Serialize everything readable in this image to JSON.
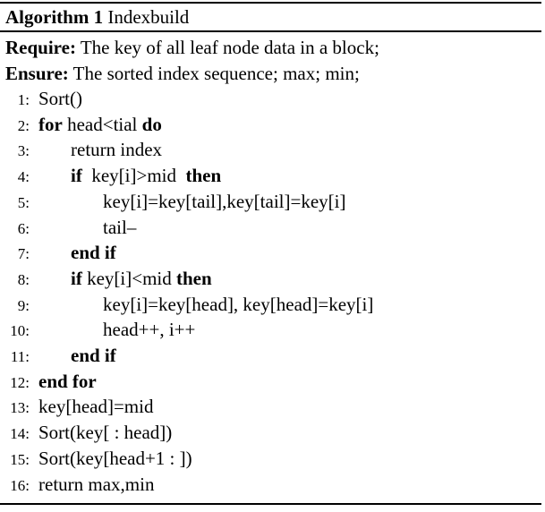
{
  "algorithm": {
    "label": "Algorithm 1",
    "name": "Indexbuild"
  },
  "require": {
    "keyword": "Require:",
    "text": "The key of all leaf node data in a block;"
  },
  "ensure": {
    "keyword": "Ensure:",
    "text": "The sorted index sequence; max; min;"
  },
  "lines": [
    {
      "num": "1:",
      "indent": 0,
      "parts": [
        {
          "t": "Sort()"
        }
      ]
    },
    {
      "num": "2:",
      "indent": 0,
      "parts": [
        {
          "t": "for",
          "kw": true
        },
        {
          "t": " head<tial "
        },
        {
          "t": "do",
          "kw": true
        }
      ]
    },
    {
      "num": "3:",
      "indent": 1,
      "parts": [
        {
          "t": "return index"
        }
      ]
    },
    {
      "num": "4:",
      "indent": 1,
      "parts": [
        {
          "t": "if",
          "kw": true
        },
        {
          "t": "  key[i]>mid  "
        },
        {
          "t": "then",
          "kw": true
        }
      ]
    },
    {
      "num": "5:",
      "indent": 2,
      "parts": [
        {
          "t": "key[i]=key[tail],key[tail]=key[i]"
        }
      ]
    },
    {
      "num": "6:",
      "indent": 2,
      "parts": [
        {
          "t": "tail–"
        }
      ]
    },
    {
      "num": "7:",
      "indent": 1,
      "parts": [
        {
          "t": "end if",
          "kw": true
        }
      ]
    },
    {
      "num": "8:",
      "indent": 1,
      "parts": [
        {
          "t": "if",
          "kw": true
        },
        {
          "t": " key[i]<mid "
        },
        {
          "t": "then",
          "kw": true
        }
      ]
    },
    {
      "num": "9:",
      "indent": 2,
      "parts": [
        {
          "t": "key[i]=key[head], key[head]=key[i]"
        }
      ]
    },
    {
      "num": "10:",
      "indent": 2,
      "parts": [
        {
          "t": "head++, i++"
        }
      ]
    },
    {
      "num": "11:",
      "indent": 1,
      "parts": [
        {
          "t": "end if",
          "kw": true
        }
      ]
    },
    {
      "num": "12:",
      "indent": 0,
      "parts": [
        {
          "t": "end for",
          "kw": true
        }
      ]
    },
    {
      "num": "13:",
      "indent": 0,
      "parts": [
        {
          "t": "key[head]=mid"
        }
      ]
    },
    {
      "num": "14:",
      "indent": 0,
      "parts": [
        {
          "t": "Sort(key[ : head])"
        }
      ]
    },
    {
      "num": "15:",
      "indent": 0,
      "parts": [
        {
          "t": "Sort(key[head+1 : ])"
        }
      ]
    },
    {
      "num": "16:",
      "indent": 0,
      "parts": [
        {
          "t": "return max,min"
        }
      ]
    }
  ]
}
